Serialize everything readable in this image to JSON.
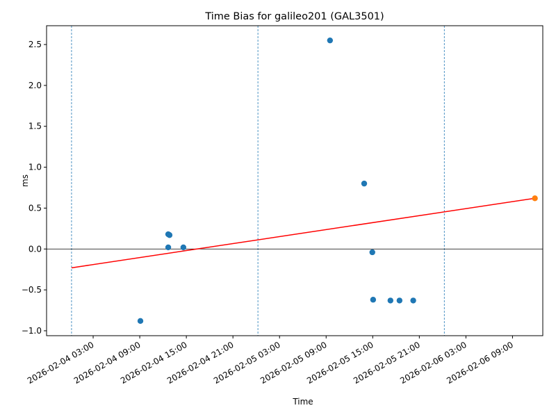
{
  "chart_data": {
    "type": "scatter",
    "title": "Time Bias for galileo201 (GAL3501)",
    "x_label": "Time",
    "y_label": "ms",
    "xlim": [
      "2026-02-03 21:00",
      "2026-02-06 12:54"
    ],
    "xticks": [
      "2026-02-04 03:00",
      "2026-02-04 09:00",
      "2026-02-04 15:00",
      "2026-02-04 21:00",
      "2026-02-05 03:00",
      "2026-02-05 09:00",
      "2026-02-05 15:00",
      "2026-02-05 21:00",
      "2026-02-06 03:00",
      "2026-02-06 09:00"
    ],
    "ylim": [
      -1.06,
      2.73
    ],
    "yticks": [
      {
        "value": -1,
        "label": "−1.0"
      },
      {
        "value": -0.5,
        "label": "−0.5"
      },
      {
        "value": 0,
        "label": "0.0"
      },
      {
        "value": 0.5,
        "label": "0.5"
      },
      {
        "value": 1,
        "label": "1.0"
      },
      {
        "value": 1.5,
        "label": "1.5"
      },
      {
        "value": 2,
        "label": "2.0"
      },
      {
        "value": 2.5,
        "label": "2.5"
      }
    ],
    "hlines": [
      0
    ],
    "vlines": [
      "2026-02-04 00:13",
      "2026-02-05 00:13",
      "2026-02-06 00:13"
    ],
    "series": [
      {
        "color": "#1f77b4",
        "style": "points",
        "x": [
          "2026-02-04 09:05",
          "2026-02-04 12:40",
          "2026-02-04 12:50",
          "2026-02-04 12:40",
          "2026-02-04 14:37",
          "2026-02-05 09:30",
          "2026-02-05 13:54",
          "2026-02-05 14:57",
          "2026-02-05 15:03",
          "2026-02-05 17:17",
          "2026-02-05 18:27",
          "2026-02-05 20:13"
        ],
        "values": [
          -0.88,
          0.18,
          0.17,
          0.02,
          0.02,
          2.55,
          0.8,
          -0.04,
          -0.62,
          -0.63,
          -0.63,
          -0.63
        ]
      },
      {
        "color": "#ff0000",
        "style": "line",
        "x": [
          "2026-02-04 00:13",
          "2026-02-06 11:53"
        ],
        "values": [
          -0.23,
          0.62
        ]
      },
      {
        "color": "#ff7f0e",
        "style": "points",
        "x": [
          "2026-02-06 11:53"
        ],
        "values": [
          0.62
        ]
      }
    ]
  }
}
